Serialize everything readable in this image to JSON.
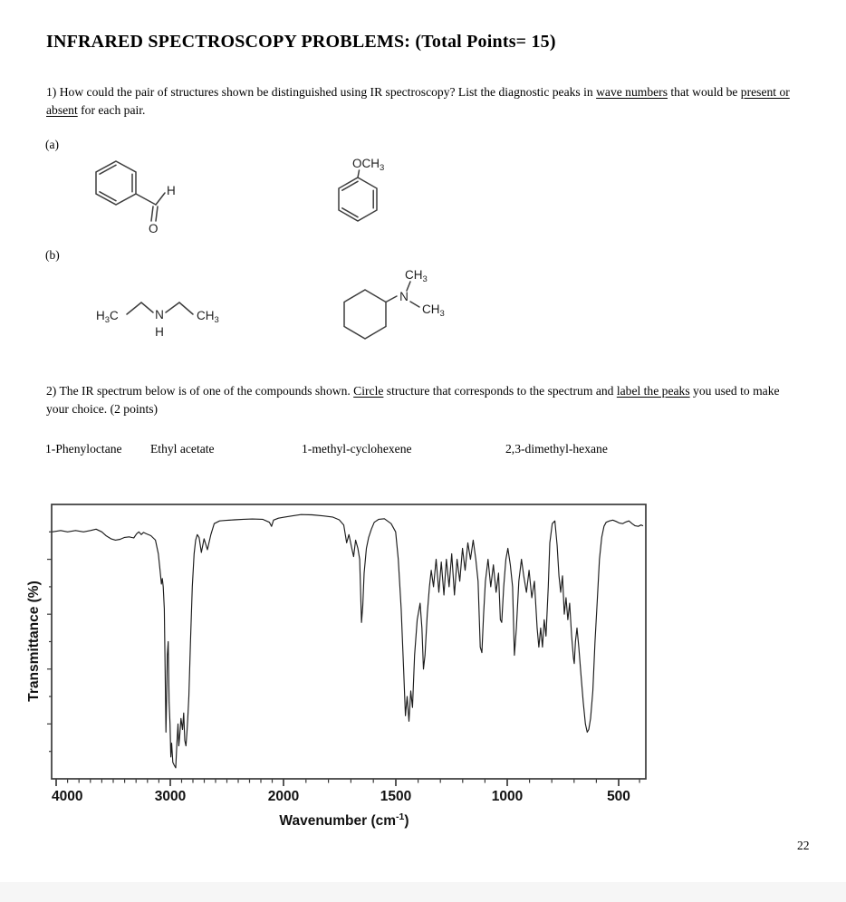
{
  "title": "INFRARED SPECTROSCOPY PROBLEMS: (Total Points= 15)",
  "q1": {
    "part1": "1) How could the pair of structures shown be distinguished using IR spectroscopy? List the diagnostic peaks in ",
    "u1": "wave numbers",
    "part2": " that would be ",
    "u2": "present or absent",
    "part3": " for each pair."
  },
  "labels": {
    "a": "(a)",
    "b": "(b)"
  },
  "structures": {
    "benzaldehyde": {
      "h": "H",
      "o": "O"
    },
    "anisole": {
      "och": "OCH",
      "sub": "3"
    },
    "diethylamine": {
      "h": "H",
      "h_sub": "3",
      "c": "C",
      "n": "N",
      "nh": "H",
      "ch": "CH",
      "ch_sub": "3"
    },
    "dimethylcyclohexylamine": {
      "ch_top": "CH",
      "ch_top_sub": "3",
      "n": "N",
      "ch_right": "CH",
      "ch_right_sub": "3"
    }
  },
  "q2": {
    "part1": "2) The IR spectrum below is of one of the compounds shown. ",
    "u1": "Circle",
    "part2": " structure that corresponds to the spectrum and ",
    "u2": "label the peaks",
    "part3": " you used to make your choice. (2 points)"
  },
  "options": [
    "1-Phenyloctane",
    "Ethyl acetate",
    "1-methyl-cyclohexene",
    "2,3-dimethyl-hexane"
  ],
  "page": {
    "number": "22"
  },
  "colors": {
    "curve": "#1c1c1c",
    "axis": "#3a3a3a",
    "footer_strip": "#f6f6f6"
  },
  "chart_data": {
    "type": "line",
    "title": "",
    "ylabel": "Transmittance (%)",
    "xlabel_main": "Wavenumber (cm",
    "xlabel_sup": "-1",
    "xlabel_close": ")",
    "x_ticks": [
      4000,
      3000,
      2000,
      1500,
      1000,
      500
    ],
    "x_minor_step": 100,
    "xlim": [
      4050,
      380
    ],
    "ylim": [
      0,
      100
    ],
    "x_axis_note": "reversed wavenumber axis; scale expands 2x below 2000 cm-1",
    "grid": false,
    "legend": "none",
    "series": [
      {
        "name": "IR spectrum (transmittance vs wavenumber)",
        "points": [
          [
            4040,
            90
          ],
          [
            3960,
            90.5
          ],
          [
            3900,
            90
          ],
          [
            3830,
            90.5
          ],
          [
            3760,
            90
          ],
          [
            3700,
            90.5
          ],
          [
            3650,
            91
          ],
          [
            3600,
            90
          ],
          [
            3560,
            88.5
          ],
          [
            3520,
            87.5
          ],
          [
            3480,
            87
          ],
          [
            3440,
            87.3
          ],
          [
            3400,
            88
          ],
          [
            3360,
            88.2
          ],
          [
            3320,
            87.8
          ],
          [
            3295,
            89.3
          ],
          [
            3275,
            90
          ],
          [
            3255,
            89
          ],
          [
            3235,
            89.8
          ],
          [
            3210,
            89.3
          ],
          [
            3170,
            88.6
          ],
          [
            3130,
            87
          ],
          [
            3105,
            82
          ],
          [
            3090,
            76
          ],
          [
            3078,
            71
          ],
          [
            3070,
            73
          ],
          [
            3062,
            70
          ],
          [
            3052,
            62
          ],
          [
            3045,
            40
          ],
          [
            3038,
            17
          ],
          [
            3032,
            30
          ],
          [
            3026,
            45
          ],
          [
            3018,
            50
          ],
          [
            3010,
            28
          ],
          [
            3002,
            20
          ],
          [
            2995,
            8
          ],
          [
            2988,
            13
          ],
          [
            2978,
            6
          ],
          [
            2966,
            5
          ],
          [
            2952,
            4
          ],
          [
            2942,
            13
          ],
          [
            2932,
            20
          ],
          [
            2925,
            12
          ],
          [
            2916,
            16
          ],
          [
            2906,
            22
          ],
          [
            2892,
            18
          ],
          [
            2882,
            24
          ],
          [
            2872,
            14
          ],
          [
            2862,
            12
          ],
          [
            2853,
            17
          ],
          [
            2846,
            22
          ],
          [
            2836,
            30
          ],
          [
            2822,
            50
          ],
          [
            2806,
            70
          ],
          [
            2790,
            82
          ],
          [
            2776,
            87
          ],
          [
            2762,
            89
          ],
          [
            2746,
            88
          ],
          [
            2726,
            82.5
          ],
          [
            2702,
            87.5
          ],
          [
            2672,
            83.5
          ],
          [
            2642,
            89
          ],
          [
            2612,
            93
          ],
          [
            2565,
            94
          ],
          [
            2505,
            94.2
          ],
          [
            2435,
            94.4
          ],
          [
            2355,
            94.6
          ],
          [
            2275,
            94.7
          ],
          [
            2185,
            94.6
          ],
          [
            2125,
            93.5
          ],
          [
            2106,
            92
          ],
          [
            2088,
            94.3
          ],
          [
            2045,
            95
          ],
          [
            2000,
            95.3
          ],
          [
            1962,
            95.8
          ],
          [
            1922,
            96.3
          ],
          [
            1872,
            96.2
          ],
          [
            1822,
            95.8
          ],
          [
            1782,
            95.4
          ],
          [
            1752,
            94.4
          ],
          [
            1732,
            92.5
          ],
          [
            1719,
            86
          ],
          [
            1709,
            89
          ],
          [
            1696,
            84
          ],
          [
            1688,
            81
          ],
          [
            1679,
            87
          ],
          [
            1669,
            84
          ],
          [
            1661,
            80
          ],
          [
            1653,
            57
          ],
          [
            1647,
            63
          ],
          [
            1641,
            75
          ],
          [
            1631,
            84
          ],
          [
            1621,
            88
          ],
          [
            1609,
            91
          ],
          [
            1596,
            93.5
          ],
          [
            1576,
            94.6
          ],
          [
            1551,
            94.8
          ],
          [
            1521,
            93
          ],
          [
            1501,
            90
          ],
          [
            1489,
            80
          ],
          [
            1476,
            62
          ],
          [
            1465,
            40
          ],
          [
            1457,
            23
          ],
          [
            1449,
            30
          ],
          [
            1441,
            21
          ],
          [
            1433,
            32
          ],
          [
            1425,
            26
          ],
          [
            1416,
            45
          ],
          [
            1404,
            58
          ],
          [
            1391,
            64
          ],
          [
            1383,
            55
          ],
          [
            1376,
            40
          ],
          [
            1369,
            45
          ],
          [
            1359,
            60
          ],
          [
            1349,
            70
          ],
          [
            1341,
            76
          ],
          [
            1331,
            70
          ],
          [
            1319,
            80
          ],
          [
            1307,
            68
          ],
          [
            1296,
            79
          ],
          [
            1284,
            67
          ],
          [
            1273,
            80
          ],
          [
            1261,
            70
          ],
          [
            1249,
            82
          ],
          [
            1237,
            67
          ],
          [
            1225,
            80
          ],
          [
            1213,
            72
          ],
          [
            1201,
            84
          ],
          [
            1189,
            76
          ],
          [
            1177,
            86
          ],
          [
            1165,
            80
          ],
          [
            1153,
            87
          ],
          [
            1141,
            80
          ],
          [
            1131,
            72
          ],
          [
            1121,
            48
          ],
          [
            1114,
            46
          ],
          [
            1106,
            60
          ],
          [
            1098,
            72
          ],
          [
            1086,
            80
          ],
          [
            1074,
            70
          ],
          [
            1062,
            78
          ],
          [
            1050,
            68
          ],
          [
            1039,
            75
          ],
          [
            1031,
            58
          ],
          [
            1025,
            57
          ],
          [
            1016,
            70
          ],
          [
            1006,
            80
          ],
          [
            997,
            84
          ],
          [
            986,
            78
          ],
          [
            976,
            70
          ],
          [
            968,
            45
          ],
          [
            959,
            55
          ],
          [
            948,
            72
          ],
          [
            936,
            80
          ],
          [
            926,
            74
          ],
          [
            914,
            68
          ],
          [
            902,
            76
          ],
          [
            890,
            66
          ],
          [
            878,
            72
          ],
          [
            866,
            55
          ],
          [
            858,
            48
          ],
          [
            850,
            55
          ],
          [
            842,
            48
          ],
          [
            834,
            58
          ],
          [
            826,
            52
          ],
          [
            816,
            70
          ],
          [
            809,
            86
          ],
          [
            798,
            93
          ],
          [
            786,
            94
          ],
          [
            776,
            85
          ],
          [
            768,
            74
          ],
          [
            760,
            68
          ],
          [
            752,
            74
          ],
          [
            744,
            60
          ],
          [
            736,
            66
          ],
          [
            728,
            58
          ],
          [
            720,
            64
          ],
          [
            711,
            52
          ],
          [
            703,
            44
          ],
          [
            699,
            42
          ],
          [
            694,
            50
          ],
          [
            687,
            55
          ],
          [
            679,
            48
          ],
          [
            669,
            38
          ],
          [
            659,
            28
          ],
          [
            649,
            20
          ],
          [
            641,
            17
          ],
          [
            634,
            18
          ],
          [
            626,
            22
          ],
          [
            616,
            32
          ],
          [
            606,
            50
          ],
          [
            596,
            65
          ],
          [
            586,
            80
          ],
          [
            576,
            88
          ],
          [
            566,
            92
          ],
          [
            556,
            93.5
          ],
          [
            541,
            94
          ],
          [
            526,
            94.3
          ],
          [
            511,
            93.8
          ],
          [
            496,
            93.2
          ],
          [
            481,
            93
          ],
          [
            466,
            93.6
          ],
          [
            451,
            94
          ],
          [
            436,
            93
          ],
          [
            421,
            92.2
          ],
          [
            406,
            92
          ],
          [
            393,
            92.5
          ],
          [
            383,
            92.2
          ]
        ]
      }
    ]
  }
}
